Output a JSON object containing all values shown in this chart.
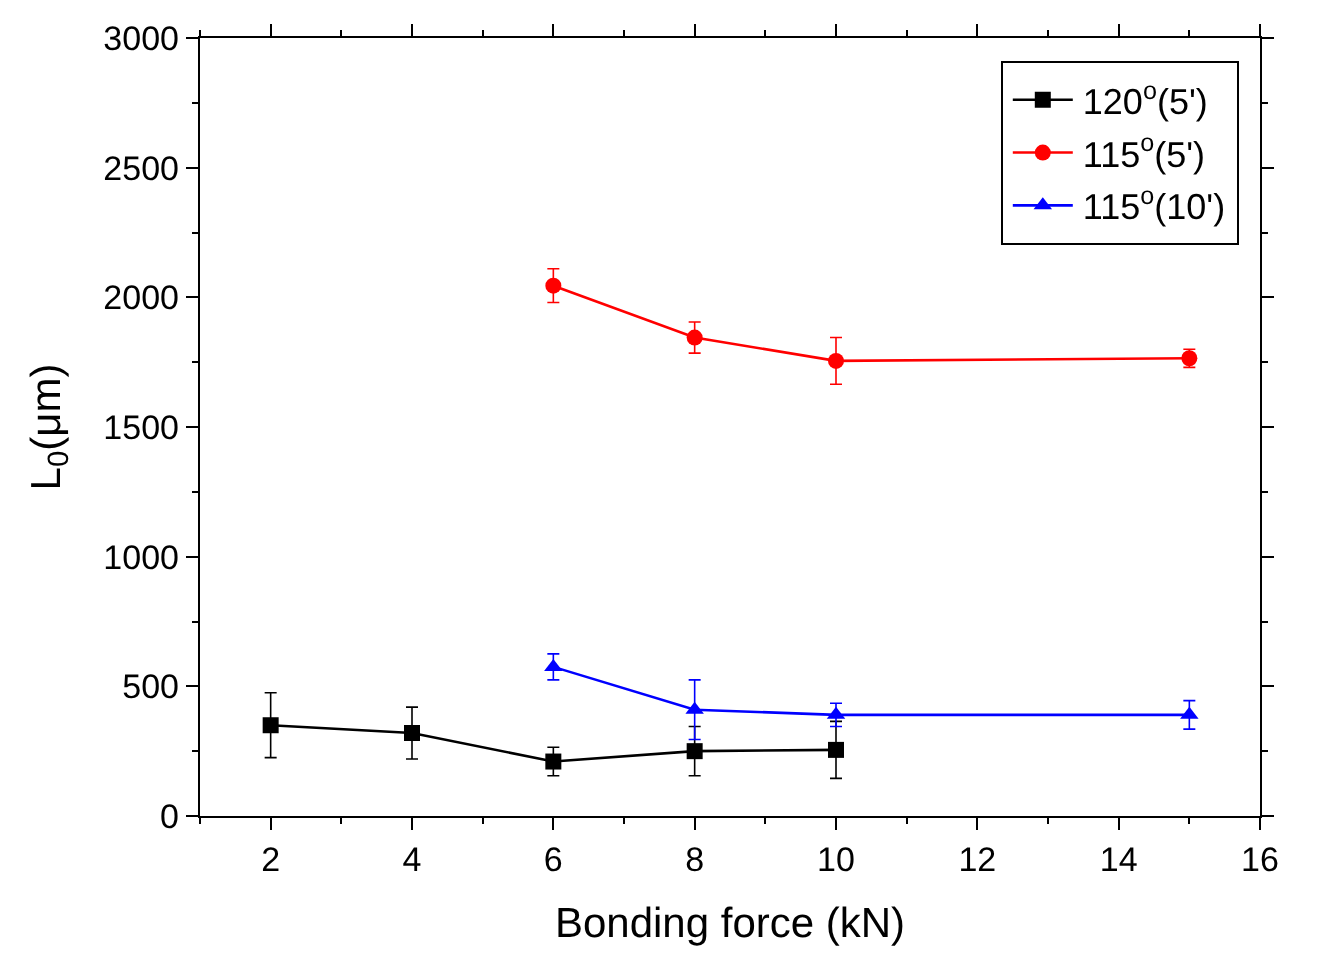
{
  "chart_data": {
    "type": "line",
    "xlabel": "Bonding force (kN)",
    "ylabel": "L$_{0}$(μm)",
    "xlim": [
      1,
      16
    ],
    "xticks": [
      2,
      4,
      6,
      8,
      10,
      12,
      14,
      16
    ],
    "ylim": [
      0,
      3000
    ],
    "yticks": [
      0,
      500,
      1000,
      1500,
      2000,
      2500,
      3000
    ],
    "legend": "top right",
    "series": [
      {
        "name": "120$^{o}$(5')",
        "color": "#000000",
        "marker": "square",
        "x": [
          2,
          4,
          6,
          8,
          10
        ],
        "values": [
          350,
          320,
          210,
          250,
          255
        ],
        "errors": [
          125,
          100,
          55,
          95,
          110
        ]
      },
      {
        "name": "115$^{o}$(5')",
        "color": "#ff0000",
        "marker": "circle",
        "x": [
          6,
          8,
          10,
          15
        ],
        "values": [
          2045,
          1845,
          1755,
          1765
        ],
        "errors": [
          65,
          60,
          90,
          35
        ]
      },
      {
        "name": "115$^{o}$(10')",
        "color": "#0000ff",
        "marker": "triangle",
        "x": [
          6,
          8,
          10,
          15
        ],
        "values": [
          575,
          410,
          390,
          390
        ],
        "errors": [
          50,
          115,
          45,
          55
        ]
      }
    ]
  }
}
